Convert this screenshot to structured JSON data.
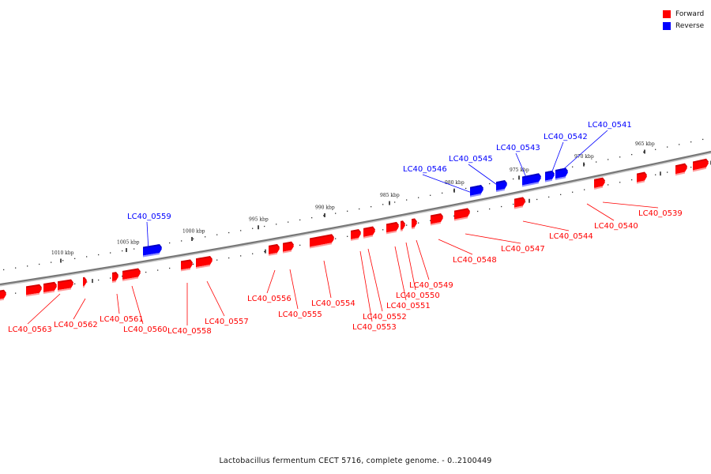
{
  "legend": {
    "items": [
      {
        "label": "Forward",
        "color": "#ff0000"
      },
      {
        "label": "Reverse",
        "color": "#0000ff"
      }
    ]
  },
  "caption": "Lactobacillus fermentum CECT 5716, complete genome. - 0..2100449",
  "colors": {
    "forward": "#ff0000",
    "reverse": "#0000ff",
    "backbone": "#777777"
  },
  "scale_ticks": [
    "965 kbp",
    "970 kbp",
    "975 kbp",
    "980 kbp",
    "985 kbp",
    "990 kbp",
    "995 kbp",
    "1000 kbp",
    "1005 kbp",
    "1010 kbp"
  ],
  "genes": [
    {
      "label": "LC40_0539",
      "strand": "forward"
    },
    {
      "label": "LC40_0540",
      "strand": "forward"
    },
    {
      "label": "LC40_0541",
      "strand": "reverse"
    },
    {
      "label": "LC40_0542",
      "strand": "reverse"
    },
    {
      "label": "LC40_0543",
      "strand": "reverse"
    },
    {
      "label": "LC40_0544",
      "strand": "forward"
    },
    {
      "label": "LC40_0545",
      "strand": "reverse"
    },
    {
      "label": "LC40_0546",
      "strand": "reverse"
    },
    {
      "label": "LC40_0547",
      "strand": "forward"
    },
    {
      "label": "LC40_0548",
      "strand": "forward"
    },
    {
      "label": "LC40_0549",
      "strand": "forward"
    },
    {
      "label": "LC40_0550",
      "strand": "forward"
    },
    {
      "label": "LC40_0551",
      "strand": "forward"
    },
    {
      "label": "LC40_0552",
      "strand": "forward"
    },
    {
      "label": "LC40_0553",
      "strand": "forward"
    },
    {
      "label": "LC40_0554",
      "strand": "forward"
    },
    {
      "label": "LC40_0555",
      "strand": "forward"
    },
    {
      "label": "LC40_0556",
      "strand": "forward"
    },
    {
      "label": "LC40_0557",
      "strand": "forward"
    },
    {
      "label": "LC40_0558",
      "strand": "forward"
    },
    {
      "label": "LC40_0559",
      "strand": "reverse"
    },
    {
      "label": "LC40_0560",
      "strand": "forward"
    },
    {
      "label": "LC40_0561",
      "strand": "forward"
    },
    {
      "label": "LC40_0562",
      "strand": "forward"
    },
    {
      "label": "LC40_0563",
      "strand": "forward"
    }
  ]
}
